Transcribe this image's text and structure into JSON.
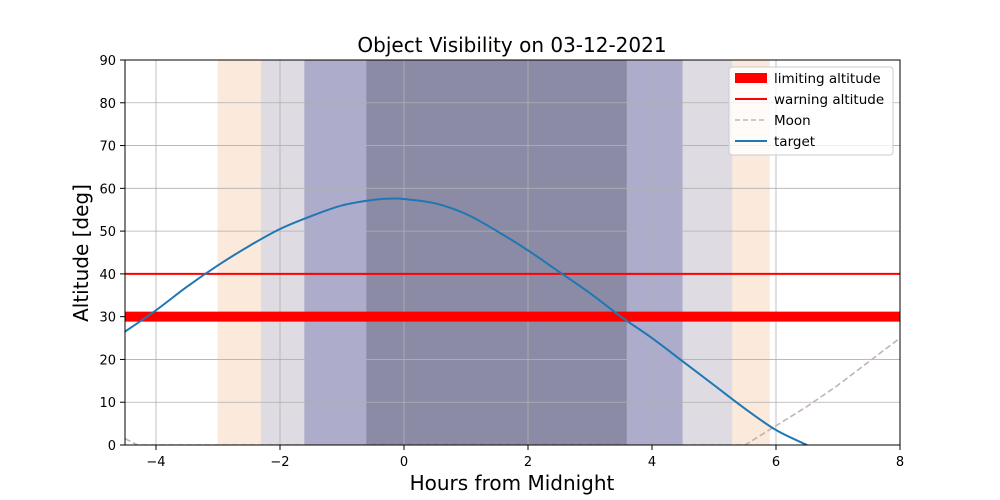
{
  "chart_data": {
    "type": "line",
    "title": "Object Visibility on 03-12-2021",
    "xlabel": "Hours from Midnight",
    "ylabel": "Altitude [deg]",
    "xlim": [
      -4.5,
      8
    ],
    "ylim": [
      0,
      90
    ],
    "grid": true,
    "legend_position": "top-right",
    "x_ticks": [
      -4,
      -2,
      0,
      2,
      4,
      6,
      8
    ],
    "x_tick_labels": [
      "−4",
      "−2",
      "0",
      "2",
      "4",
      "6",
      "8"
    ],
    "y_ticks": [
      0,
      10,
      20,
      30,
      40,
      50,
      60,
      70,
      80,
      90
    ],
    "y_tick_labels": [
      "0",
      "10",
      "20",
      "30",
      "40",
      "50",
      "60",
      "70",
      "80",
      "90"
    ],
    "twilight_bands": [
      {
        "name": "civil-twilight-evening",
        "x_start": -3.0,
        "x_end": -2.3,
        "color": "#fbe9dc"
      },
      {
        "name": "nautical-twilight-evening",
        "x_start": -2.3,
        "x_end": -1.6,
        "color": "#dedbe3"
      },
      {
        "name": "astronomical-twilight-evening",
        "x_start": -1.6,
        "x_end": -0.6,
        "color": "#adacca"
      },
      {
        "name": "night",
        "x_start": -0.6,
        "x_end": 3.6,
        "color": "#8b8ba5"
      },
      {
        "name": "astronomical-twilight-morning",
        "x_start": 3.6,
        "x_end": 4.5,
        "color": "#adacca"
      },
      {
        "name": "nautical-twilight-morning",
        "x_start": 4.5,
        "x_end": 5.3,
        "color": "#dedbe3"
      },
      {
        "name": "civil-twilight-morning",
        "x_start": 5.3,
        "x_end": 5.9,
        "color": "#fbe9dc"
      }
    ],
    "series": [
      {
        "name": "limiting altitude",
        "style": "solid-thick",
        "color": "#ff0000",
        "x": [
          -4.5,
          8
        ],
        "y": [
          30,
          30
        ]
      },
      {
        "name": "warning altitude",
        "style": "solid",
        "color": "#ff0000",
        "x": [
          -4.5,
          8
        ],
        "y": [
          40,
          40
        ]
      },
      {
        "name": "Moon",
        "style": "dashed",
        "color": "#c0b4b0",
        "x": [
          -4.5,
          -4.3,
          5.5,
          6.0,
          6.5,
          7.0,
          7.5,
          8.0
        ],
        "y": [
          1.5,
          0,
          0,
          4.5,
          9,
          14,
          19.5,
          25
        ]
      },
      {
        "name": "target",
        "style": "solid",
        "color": "#1f77b4",
        "x": [
          -4.5,
          -4.0,
          -3.5,
          -3.0,
          -2.5,
          -2.0,
          -1.5,
          -1.0,
          -0.5,
          -0.2,
          0.0,
          0.5,
          1.0,
          1.5,
          2.0,
          2.5,
          3.0,
          3.5,
          4.0,
          4.5,
          5.0,
          5.5,
          6.0,
          6.5
        ],
        "y": [
          26.5,
          31.5,
          37,
          42,
          46.5,
          50.5,
          53.5,
          56,
          57.3,
          57.6,
          57.5,
          56.5,
          54,
          50,
          45.5,
          40.5,
          35.5,
          30,
          25,
          19.5,
          14,
          8.5,
          3.5,
          0
        ]
      }
    ],
    "legend": [
      {
        "label": "limiting altitude",
        "style": "solid-thick",
        "color": "#ff0000"
      },
      {
        "label": "warning altitude",
        "style": "solid",
        "color": "#ff0000"
      },
      {
        "label": "Moon",
        "style": "dashed",
        "color": "#c0b4b0"
      },
      {
        "label": "target",
        "style": "solid",
        "color": "#1f77b4"
      }
    ]
  }
}
